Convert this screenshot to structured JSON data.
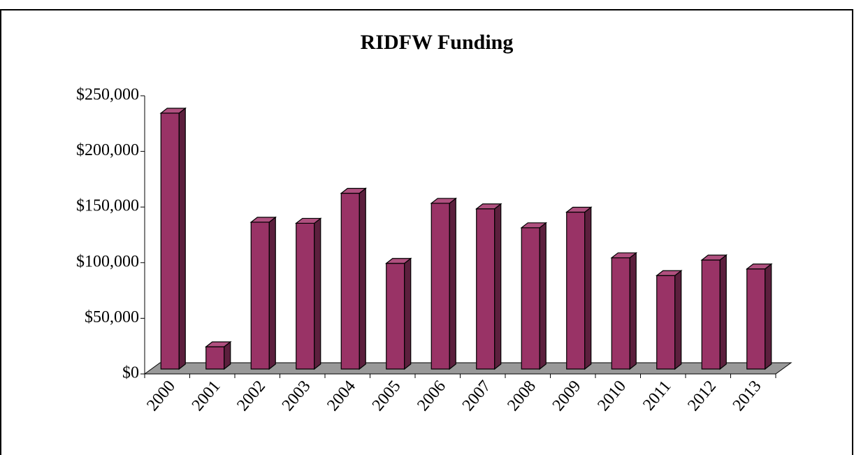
{
  "chart_data": {
    "type": "bar",
    "title": "RIDFW Funding",
    "categories": [
      "2000",
      "2001",
      "2002",
      "2003",
      "2004",
      "2005",
      "2006",
      "2007",
      "2008",
      "2009",
      "2010",
      "2011",
      "2012",
      "2013"
    ],
    "values": [
      230000,
      20000,
      132000,
      131000,
      158000,
      95000,
      149000,
      144000,
      127000,
      141000,
      100000,
      84000,
      98000,
      90000
    ],
    "color": "#993366",
    "ylim": [
      0,
      250000
    ],
    "yticks": [
      {
        "value": 0,
        "label": "$0"
      },
      {
        "value": 50000,
        "label": "$50,000"
      },
      {
        "value": 100000,
        "label": "$100,000"
      },
      {
        "value": 150000,
        "label": "$150,000"
      },
      {
        "value": 200000,
        "label": "$200,000"
      },
      {
        "value": 250000,
        "label": "$250,000"
      }
    ],
    "grid": false
  }
}
